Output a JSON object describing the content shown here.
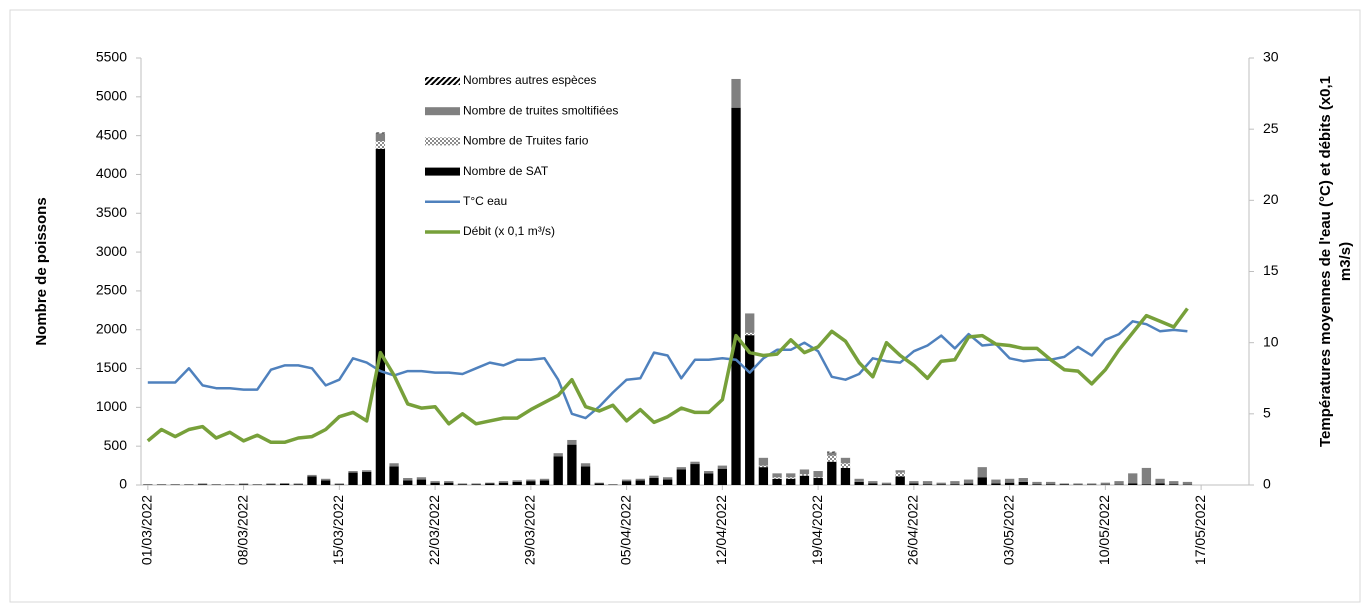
{
  "chart_data": {
    "type": "bar-line",
    "categories": [
      "01/03/2022",
      null,
      null,
      null,
      null,
      null,
      null,
      "08/03/2022",
      null,
      null,
      null,
      null,
      null,
      null,
      "15/03/2022",
      null,
      null,
      null,
      null,
      null,
      null,
      "22/03/2022",
      null,
      null,
      null,
      null,
      null,
      null,
      "29/03/2022",
      null,
      null,
      null,
      null,
      null,
      null,
      "05/04/2022",
      null,
      null,
      null,
      null,
      null,
      null,
      "12/04/2022",
      null,
      null,
      null,
      null,
      null,
      null,
      "19/04/2022",
      null,
      null,
      null,
      null,
      null,
      null,
      "26/04/2022",
      null,
      null,
      null,
      null,
      null,
      null,
      "03/05/2022",
      null,
      null,
      null,
      null,
      null,
      null,
      "10/05/2022",
      null,
      null,
      null,
      null,
      null,
      null,
      "17/05/2022",
      null,
      null,
      null
    ],
    "ylabel": "Nombre de poissons",
    "y2label": [
      "Températures moyennes de l'eau (°C) et débits (x0,1",
      "m3/s)"
    ],
    "ylim": [
      0,
      5500
    ],
    "yticks": [
      0,
      500,
      1000,
      1500,
      2000,
      2500,
      3000,
      3500,
      4000,
      4500,
      5000,
      5500
    ],
    "y2lim": [
      0,
      30
    ],
    "y2ticks": [
      0,
      5,
      10,
      15,
      20,
      25,
      30
    ],
    "stacked": true,
    "series": [
      {
        "name": "Nombre de SAT",
        "kind": "bar",
        "color": "#000000",
        "pattern": "solid",
        "values": [
          5,
          5,
          5,
          5,
          10,
          5,
          5,
          10,
          5,
          10,
          15,
          10,
          110,
          60,
          10,
          160,
          170,
          4330,
          240,
          60,
          70,
          30,
          30,
          10,
          10,
          20,
          30,
          40,
          50,
          60,
          370,
          520,
          240,
          20,
          5,
          50,
          60,
          90,
          70,
          200,
          270,
          150,
          210,
          4860,
          1930,
          230,
          80,
          80,
          120,
          90,
          300,
          220,
          40,
          20,
          10,
          110,
          20,
          10,
          10,
          10,
          20,
          100,
          20,
          30,
          40,
          10,
          10,
          10,
          5,
          5,
          5,
          5,
          20,
          10,
          20,
          10,
          5,
          null,
          null,
          null,
          null
        ]
      },
      {
        "name": "Nombre de Truites fario",
        "kind": "bar",
        "color": "#a6a6a6",
        "pattern": "checker",
        "values": [
          0,
          0,
          0,
          0,
          0,
          0,
          0,
          0,
          0,
          0,
          0,
          0,
          0,
          0,
          0,
          0,
          0,
          100,
          0,
          0,
          0,
          0,
          0,
          0,
          0,
          0,
          0,
          0,
          0,
          0,
          0,
          0,
          0,
          0,
          0,
          0,
          0,
          0,
          0,
          0,
          0,
          0,
          0,
          0,
          30,
          20,
          20,
          20,
          20,
          10,
          80,
          60,
          0,
          0,
          0,
          50,
          0,
          0,
          0,
          0,
          0,
          0,
          0,
          0,
          0,
          0,
          0,
          0,
          0,
          0,
          0,
          0,
          0,
          0,
          0,
          0,
          0,
          null,
          null,
          null,
          null
        ]
      },
      {
        "name": "Nombre de truites smoltifiées",
        "kind": "bar",
        "color": "#808080",
        "pattern": "solid",
        "values": [
          5,
          5,
          5,
          5,
          10,
          5,
          5,
          10,
          5,
          10,
          10,
          10,
          20,
          20,
          10,
          20,
          20,
          100,
          40,
          30,
          30,
          20,
          20,
          10,
          10,
          10,
          20,
          20,
          20,
          20,
          40,
          60,
          40,
          10,
          5,
          20,
          20,
          30,
          30,
          30,
          30,
          30,
          40,
          370,
          250,
          100,
          50,
          50,
          60,
          80,
          40,
          70,
          40,
          30,
          20,
          30,
          30,
          40,
          20,
          40,
          50,
          130,
          50,
          50,
          50,
          30,
          30,
          10,
          15,
          15,
          25,
          45,
          130,
          210,
          60,
          40,
          35,
          null,
          null,
          null,
          null
        ]
      },
      {
        "name": "Nombres autres espèces",
        "kind": "bar",
        "color": "#000000",
        "pattern": "hatch",
        "values": [
          0,
          0,
          0,
          0,
          0,
          0,
          0,
          0,
          0,
          0,
          0,
          0,
          0,
          0,
          0,
          0,
          0,
          10,
          0,
          0,
          0,
          0,
          0,
          0,
          0,
          0,
          0,
          0,
          0,
          0,
          0,
          0,
          0,
          0,
          0,
          0,
          0,
          0,
          0,
          0,
          0,
          0,
          0,
          0,
          0,
          0,
          0,
          0,
          0,
          0,
          10,
          0,
          0,
          0,
          0,
          0,
          0,
          0,
          0,
          0,
          0,
          0,
          0,
          0,
          0,
          0,
          0,
          0,
          0,
          0,
          0,
          0,
          0,
          0,
          0,
          0,
          0,
          null,
          null,
          null,
          null
        ]
      },
      {
        "name": "T°C eau",
        "kind": "line",
        "axis": "y2",
        "color": "#4f81bd",
        "values": [
          7.2,
          7.2,
          7.2,
          8.2,
          7.0,
          6.8,
          6.8,
          6.7,
          6.7,
          8.1,
          8.4,
          8.4,
          8.2,
          7.0,
          7.4,
          8.9,
          8.6,
          8.0,
          7.7,
          8.0,
          8.0,
          7.9,
          7.9,
          7.8,
          8.2,
          8.6,
          8.4,
          8.8,
          8.8,
          8.9,
          7.4,
          5.0,
          4.7,
          5.5,
          6.5,
          7.4,
          7.5,
          9.3,
          9.1,
          7.5,
          8.8,
          8.8,
          8.9,
          8.8,
          7.9,
          8.9,
          9.5,
          9.5,
          10.0,
          9.4,
          7.6,
          7.4,
          7.8,
          8.9,
          8.7,
          8.6,
          9.4,
          9.8,
          10.5,
          9.6,
          10.6,
          9.8,
          9.9,
          8.9,
          8.7,
          8.8,
          8.8,
          9.0,
          9.7,
          9.1,
          10.2,
          10.6,
          11.5,
          11.3,
          10.8,
          10.9,
          10.8,
          null,
          null,
          null,
          null
        ]
      },
      {
        "name": "Débit (x 0,1 m³/s)",
        "kind": "line",
        "axis": "y2",
        "color": "#77a03a",
        "values": [
          3.1,
          3.9,
          3.4,
          3.9,
          4.1,
          3.3,
          3.7,
          3.1,
          3.5,
          3.0,
          3.0,
          3.3,
          3.4,
          3.9,
          4.8,
          5.1,
          4.5,
          9.3,
          7.7,
          5.7,
          5.4,
          5.5,
          4.3,
          5.0,
          4.3,
          4.5,
          4.7,
          4.7,
          5.3,
          5.8,
          6.3,
          7.4,
          5.5,
          5.2,
          5.6,
          4.5,
          5.3,
          4.4,
          4.8,
          5.4,
          5.1,
          5.1,
          6.0,
          10.5,
          9.3,
          9.1,
          9.2,
          10.2,
          9.3,
          9.7,
          10.8,
          10.1,
          8.6,
          7.6,
          10.0,
          9.1,
          8.4,
          7.5,
          8.7,
          8.8,
          10.4,
          10.5,
          9.9,
          9.8,
          9.6,
          9.6,
          8.8,
          8.1,
          8.0,
          7.1,
          8.1,
          9.5,
          10.7,
          11.9,
          11.5,
          11.1,
          12.4,
          null,
          null,
          null,
          null
        ]
      }
    ],
    "legend": "top-left-inside"
  }
}
